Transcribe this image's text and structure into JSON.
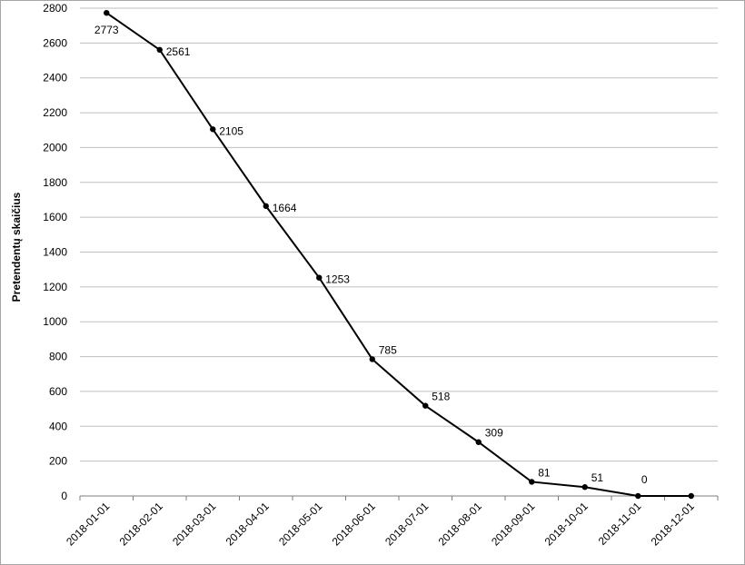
{
  "chart_data": {
    "type": "line",
    "y_label": "Pretendentų skaičius",
    "categories": [
      "2018-01-01",
      "2018-02-01",
      "2018-03-01",
      "2018-04-01",
      "2018-05-01",
      "2018-06-01",
      "2018-07-01",
      "2018-08-01",
      "2018-09-01",
      "2018-10-01",
      "2018-11-01",
      "2018-12-01"
    ],
    "values": [
      2773,
      2561,
      2105,
      1664,
      1253,
      785,
      518,
      309,
      81,
      51,
      0,
      0
    ],
    "value_labels": [
      "2773",
      "2561",
      "2105",
      "1664",
      "1253",
      "785",
      "518",
      "309",
      "81",
      "51",
      "0",
      null
    ],
    "color": "#000000",
    "ylim": [
      0,
      2800
    ],
    "yticks": [
      0,
      200,
      400,
      600,
      800,
      1000,
      1200,
      1400,
      1600,
      1800,
      2000,
      2200,
      2400,
      2600,
      2800
    ],
    "grid": true
  }
}
